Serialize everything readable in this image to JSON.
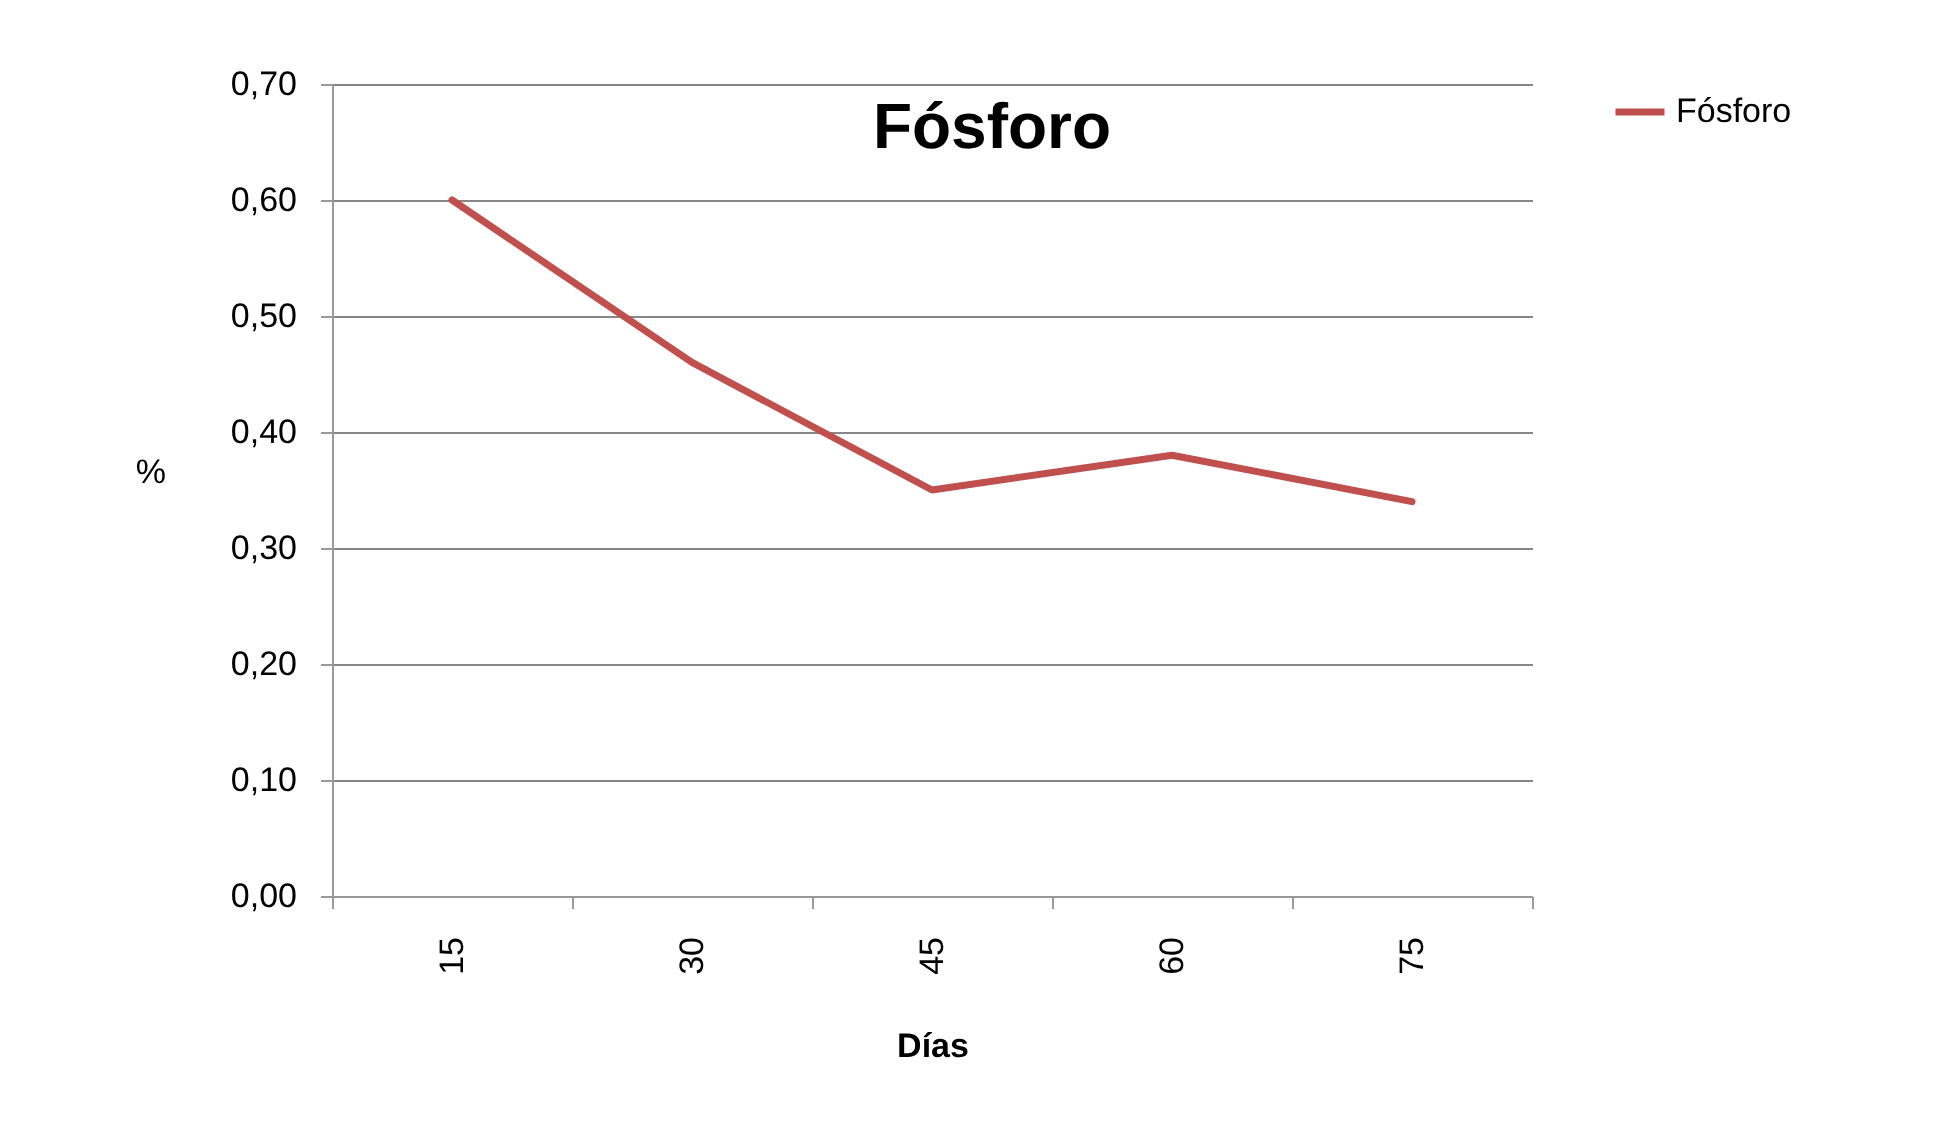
{
  "chart_data": {
    "type": "line",
    "title": "Fósforo",
    "xlabel": "Días",
    "ylabel": "%",
    "categories": [
      "15",
      "30",
      "45",
      "60",
      "75"
    ],
    "series": [
      {
        "name": "Fósforo",
        "color": "#c0504d",
        "values": [
          0.6,
          0.46,
          0.35,
          0.38,
          0.34
        ]
      }
    ],
    "ylim": [
      0,
      0.7
    ],
    "yticks": [
      {
        "value": 0,
        "label": "0,00"
      },
      {
        "value": 0.1,
        "label": "0,10"
      },
      {
        "value": 0.2,
        "label": "0,20"
      },
      {
        "value": 0.3,
        "label": "0,30"
      },
      {
        "value": 0.4,
        "label": "0,40"
      },
      {
        "value": 0.5,
        "label": "0,50"
      },
      {
        "value": 0.6,
        "label": "0,60"
      },
      {
        "value": 0.7,
        "label": "0,70"
      }
    ],
    "grid": "y",
    "legend": "right",
    "marker": "none",
    "line_style": "solid"
  }
}
